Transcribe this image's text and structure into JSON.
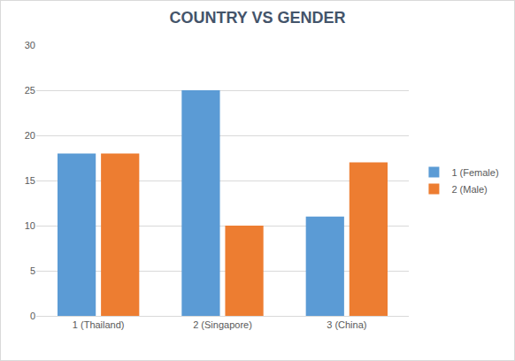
{
  "chart_data": {
    "type": "bar",
    "title": "COUNTRY VS GENDER",
    "categories": [
      "1 (Thailand)",
      "2 (Singapore)",
      "3 (China)"
    ],
    "series": [
      {
        "name": "1 (Female)",
        "color": "#5b9bd5",
        "values": [
          18,
          25,
          11
        ]
      },
      {
        "name": "2 (Male)",
        "color": "#ed7d31",
        "values": [
          18,
          10,
          17
        ]
      }
    ],
    "ylim": [
      0,
      30
    ],
    "yticks": [
      0,
      5,
      10,
      15,
      20,
      25,
      30
    ],
    "grid": true,
    "legend": "right"
  }
}
